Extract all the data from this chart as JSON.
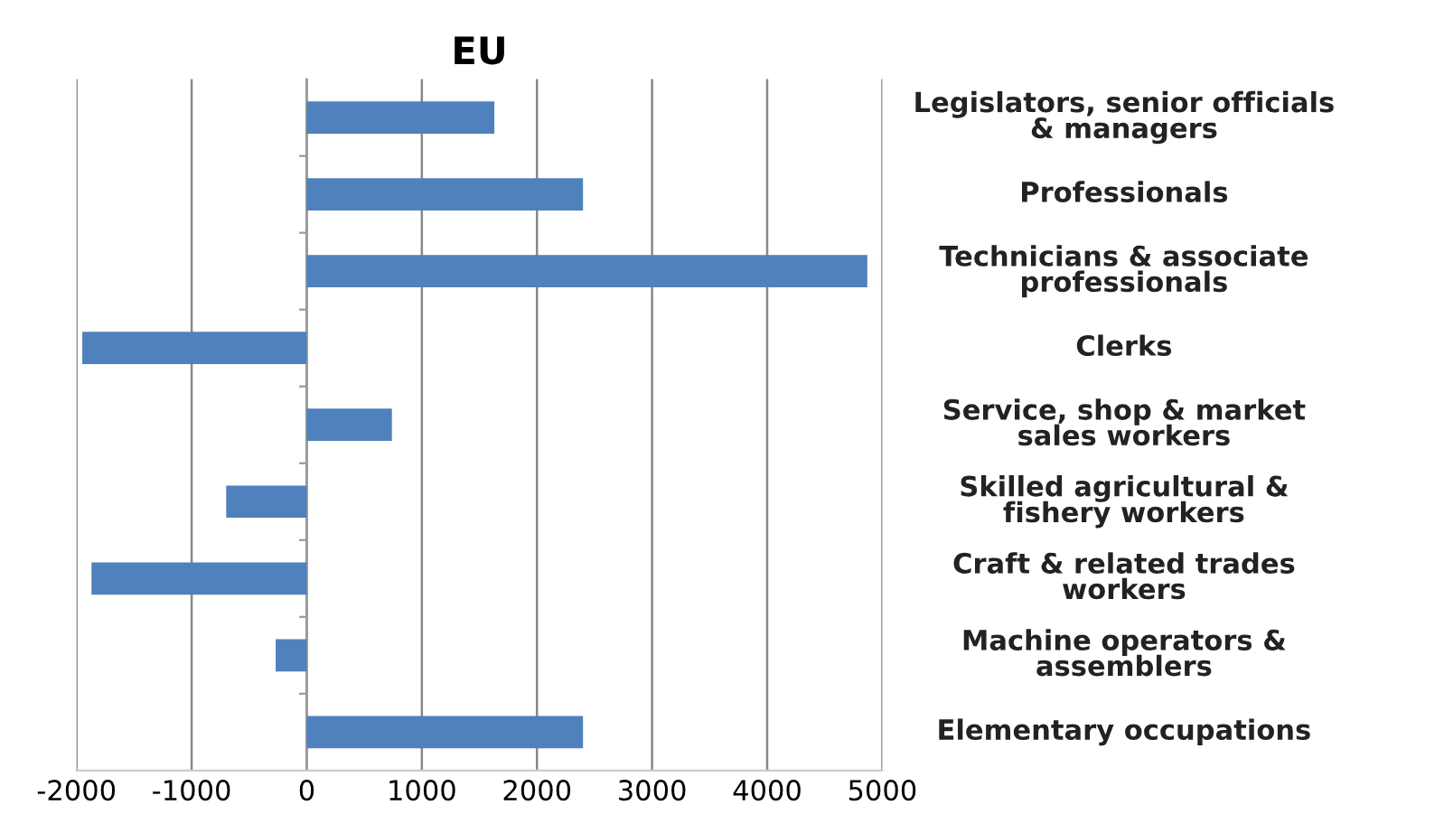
{
  "chart_data": {
    "type": "bar",
    "orientation": "horizontal",
    "title": "EU",
    "categories": [
      "Legislators, senior officials\n& managers",
      "Professionals",
      "Technicians & associate\nprofessionals",
      "Clerks",
      "Service, shop & market\nsales workers",
      "Skilled agricultural &\nfishery workers",
      "Craft & related trades\nworkers",
      "Machine operators &\nassemblers",
      "Elementary occupations"
    ],
    "values": [
      1630,
      2400,
      4870,
      -1950,
      740,
      -700,
      -1870,
      -270,
      2400
    ],
    "color": "#4f81bd",
    "xlim": [
      -2000,
      5000
    ],
    "xticks": [
      -2000,
      -1000,
      0,
      1000,
      2000,
      3000,
      4000,
      5000
    ],
    "grid": "x",
    "legend": false
  }
}
